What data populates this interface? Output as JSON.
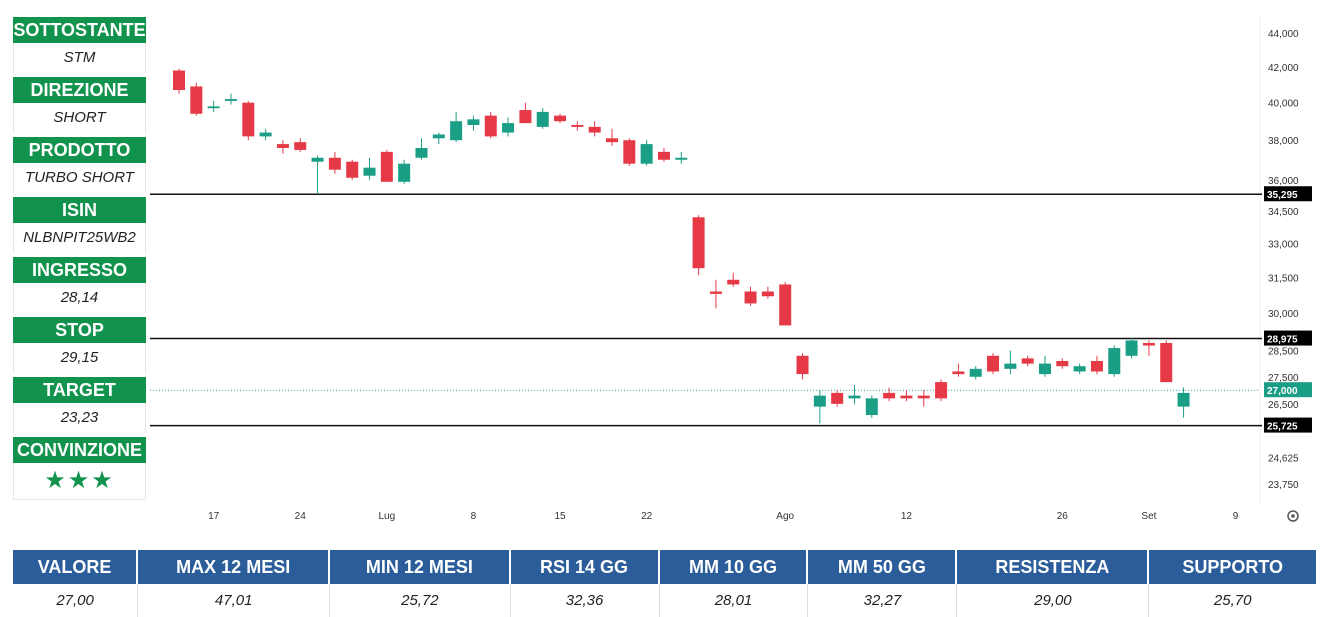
{
  "panel": {
    "items": [
      {
        "label": "SOTTOSTANTE",
        "value": "STM"
      },
      {
        "label": "DIREZIONE",
        "value": "SHORT"
      },
      {
        "label": "PRODOTTO",
        "value": "TURBO SHORT"
      },
      {
        "label": "ISIN",
        "value": "NLBNPIT25WB2"
      },
      {
        "label": "INGRESSO",
        "value": "28,14"
      },
      {
        "label": "STOP",
        "value": "29,15"
      },
      {
        "label": "TARGET",
        "value": "23,23"
      },
      {
        "label": "CONVINZIONE",
        "value": "★★★"
      }
    ]
  },
  "stats": {
    "headers": [
      "VALORE",
      "MAX 12 MESI",
      "MIN 12 MESI",
      "RSI 14 GG",
      "MM 10 GG",
      "MM 50 GG",
      "RESISTENZA",
      "SUPPORTO"
    ],
    "values": [
      "27,00",
      "47,01",
      "25,72",
      "32,36",
      "28,01",
      "32,27",
      "29,00",
      "25,70"
    ]
  },
  "colors": {
    "up": "#1a9e85",
    "down": "#e63946",
    "panel_green": "#12934d",
    "table_blue": "#2a5d9a"
  },
  "settings_icon": "gear-icon",
  "chart_data": {
    "type": "candlestick",
    "y_scale": "log",
    "y_ticks": [
      {
        "value": 44000,
        "label": "44,000"
      },
      {
        "value": 42000,
        "label": "42,000"
      },
      {
        "value": 40000,
        "label": "40,000"
      },
      {
        "value": 38000,
        "label": "38,000"
      },
      {
        "value": 36000,
        "label": "36,000"
      },
      {
        "value": 34500,
        "label": "34,500"
      },
      {
        "value": 33000,
        "label": "33,000"
      },
      {
        "value": 31500,
        "label": "31,500"
      },
      {
        "value": 30000,
        "label": "30,000"
      },
      {
        "value": 28500,
        "label": "28,500"
      },
      {
        "value": 27500,
        "label": "27,500"
      },
      {
        "value": 26500,
        "label": "26,500"
      },
      {
        "value": 25750,
        "label": "25,750"
      },
      {
        "value": 24625,
        "label": "24,625"
      },
      {
        "value": 23750,
        "label": "23,750"
      }
    ],
    "x_ticks": [
      {
        "index": 2,
        "label": "17"
      },
      {
        "index": 7,
        "label": "24"
      },
      {
        "index": 12,
        "label": "Lug"
      },
      {
        "index": 17,
        "label": "8"
      },
      {
        "index": 22,
        "label": "15"
      },
      {
        "index": 27,
        "label": "22"
      },
      {
        "index": 35,
        "label": "Ago"
      },
      {
        "index": 42,
        "label": "12"
      },
      {
        "index": 51,
        "label": "26"
      },
      {
        "index": 56,
        "label": "Set"
      },
      {
        "index": 61,
        "label": "9"
      }
    ],
    "hlines": [
      {
        "value": 35295,
        "label": "35,295",
        "style": "solid"
      },
      {
        "value": 28975,
        "label": "28,975",
        "style": "solid"
      },
      {
        "value": 25725,
        "label": "25,725",
        "style": "solid"
      },
      {
        "value": 27000,
        "label": "27,000",
        "style": "dotted"
      }
    ],
    "candles": [
      {
        "i": 0,
        "o": 41800,
        "h": 41900,
        "l": 40500,
        "c": 40700
      },
      {
        "i": 1,
        "o": 40900,
        "h": 41100,
        "l": 39300,
        "c": 39400
      },
      {
        "i": 2,
        "o": 39700,
        "h": 40100,
        "l": 39500,
        "c": 39800
      },
      {
        "i": 3,
        "o": 40100,
        "h": 40500,
        "l": 39900,
        "c": 40200
      },
      {
        "i": 4,
        "o": 40000,
        "h": 40100,
        "l": 38000,
        "c": 38200
      },
      {
        "i": 5,
        "o": 38200,
        "h": 38600,
        "l": 38000,
        "c": 38400
      },
      {
        "i": 6,
        "o": 37800,
        "h": 38000,
        "l": 37300,
        "c": 37600
      },
      {
        "i": 7,
        "o": 37900,
        "h": 38100,
        "l": 37400,
        "c": 37500
      },
      {
        "i": 8,
        "o": 36900,
        "h": 37200,
        "l": 35300,
        "c": 37100
      },
      {
        "i": 9,
        "o": 37100,
        "h": 37400,
        "l": 36300,
        "c": 36500
      },
      {
        "i": 10,
        "o": 36900,
        "h": 37000,
        "l": 36000,
        "c": 36100
      },
      {
        "i": 11,
        "o": 36200,
        "h": 37100,
        "l": 36000,
        "c": 36600
      },
      {
        "i": 12,
        "o": 37400,
        "h": 37500,
        "l": 35900,
        "c": 35900
      },
      {
        "i": 13,
        "o": 35900,
        "h": 37000,
        "l": 35800,
        "c": 36800
      },
      {
        "i": 14,
        "o": 37100,
        "h": 38100,
        "l": 37000,
        "c": 37600
      },
      {
        "i": 15,
        "o": 38100,
        "h": 38400,
        "l": 37800,
        "c": 38300
      },
      {
        "i": 16,
        "o": 38000,
        "h": 39500,
        "l": 37900,
        "c": 39000
      },
      {
        "i": 17,
        "o": 38800,
        "h": 39300,
        "l": 38500,
        "c": 39100
      },
      {
        "i": 18,
        "o": 39300,
        "h": 39500,
        "l": 38100,
        "c": 38200
      },
      {
        "i": 19,
        "o": 38400,
        "h": 39200,
        "l": 38200,
        "c": 38900
      },
      {
        "i": 20,
        "o": 39600,
        "h": 40000,
        "l": 38900,
        "c": 38900
      },
      {
        "i": 21,
        "o": 38700,
        "h": 39700,
        "l": 38600,
        "c": 39500
      },
      {
        "i": 22,
        "o": 39300,
        "h": 39400,
        "l": 38900,
        "c": 39000
      },
      {
        "i": 23,
        "o": 38800,
        "h": 39000,
        "l": 38500,
        "c": 38700
      },
      {
        "i": 24,
        "o": 38700,
        "h": 39000,
        "l": 38200,
        "c": 38400
      },
      {
        "i": 25,
        "o": 38100,
        "h": 38600,
        "l": 37700,
        "c": 37900
      },
      {
        "i": 26,
        "o": 38000,
        "h": 38100,
        "l": 36700,
        "c": 36800
      },
      {
        "i": 27,
        "o": 36800,
        "h": 38000,
        "l": 36700,
        "c": 37800
      },
      {
        "i": 28,
        "o": 37400,
        "h": 37600,
        "l": 36900,
        "c": 37000
      },
      {
        "i": 29,
        "o": 37000,
        "h": 37400,
        "l": 36800,
        "c": 37100
      },
      {
        "i": 30,
        "o": 34200,
        "h": 34300,
        "l": 31600,
        "c": 31900
      },
      {
        "i": 31,
        "o": 30900,
        "h": 31400,
        "l": 30200,
        "c": 30800
      },
      {
        "i": 32,
        "o": 31400,
        "h": 31700,
        "l": 31100,
        "c": 31200
      },
      {
        "i": 33,
        "o": 30900,
        "h": 31100,
        "l": 30300,
        "c": 30400
      },
      {
        "i": 34,
        "o": 30900,
        "h": 31100,
        "l": 30600,
        "c": 30700
      },
      {
        "i": 35,
        "o": 31200,
        "h": 31300,
        "l": 29500,
        "c": 29500
      },
      {
        "i": 36,
        "o": 28300,
        "h": 28400,
        "l": 27400,
        "c": 27600
      },
      {
        "i": 37,
        "o": 26400,
        "h": 27000,
        "l": 25800,
        "c": 26800
      },
      {
        "i": 38,
        "o": 26900,
        "h": 27000,
        "l": 26400,
        "c": 26500
      },
      {
        "i": 39,
        "o": 26700,
        "h": 27200,
        "l": 26500,
        "c": 26800
      },
      {
        "i": 40,
        "o": 26100,
        "h": 26800,
        "l": 26000,
        "c": 26700
      },
      {
        "i": 41,
        "o": 26900,
        "h": 27100,
        "l": 26600,
        "c": 26700
      },
      {
        "i": 42,
        "o": 26800,
        "h": 27000,
        "l": 26600,
        "c": 26700
      },
      {
        "i": 43,
        "o": 26800,
        "h": 27000,
        "l": 26400,
        "c": 26700
      },
      {
        "i": 44,
        "o": 27300,
        "h": 27400,
        "l": 26600,
        "c": 26700
      },
      {
        "i": 45,
        "o": 27700,
        "h": 28000,
        "l": 27500,
        "c": 27600
      },
      {
        "i": 46,
        "o": 27500,
        "h": 27900,
        "l": 27400,
        "c": 27800
      },
      {
        "i": 47,
        "o": 28300,
        "h": 28400,
        "l": 27600,
        "c": 27700
      },
      {
        "i": 48,
        "o": 27800,
        "h": 28500,
        "l": 27600,
        "c": 28000
      },
      {
        "i": 49,
        "o": 28200,
        "h": 28300,
        "l": 27900,
        "c": 28000
      },
      {
        "i": 50,
        "o": 27600,
        "h": 28300,
        "l": 27500,
        "c": 28000
      },
      {
        "i": 51,
        "o": 28100,
        "h": 28200,
        "l": 27800,
        "c": 27900
      },
      {
        "i": 52,
        "o": 27700,
        "h": 28000,
        "l": 27600,
        "c": 27900
      },
      {
        "i": 53,
        "o": 28100,
        "h": 28300,
        "l": 27600,
        "c": 27700
      },
      {
        "i": 54,
        "o": 27600,
        "h": 28700,
        "l": 27500,
        "c": 28600
      },
      {
        "i": 55,
        "o": 28300,
        "h": 29000,
        "l": 28200,
        "c": 28900
      },
      {
        "i": 56,
        "o": 28800,
        "h": 28900,
        "l": 28300,
        "c": 28700
      },
      {
        "i": 57,
        "o": 28800,
        "h": 28900,
        "l": 27300,
        "c": 27300
      },
      {
        "i": 58,
        "o": 26400,
        "h": 27100,
        "l": 26000,
        "c": 26900
      }
    ]
  }
}
